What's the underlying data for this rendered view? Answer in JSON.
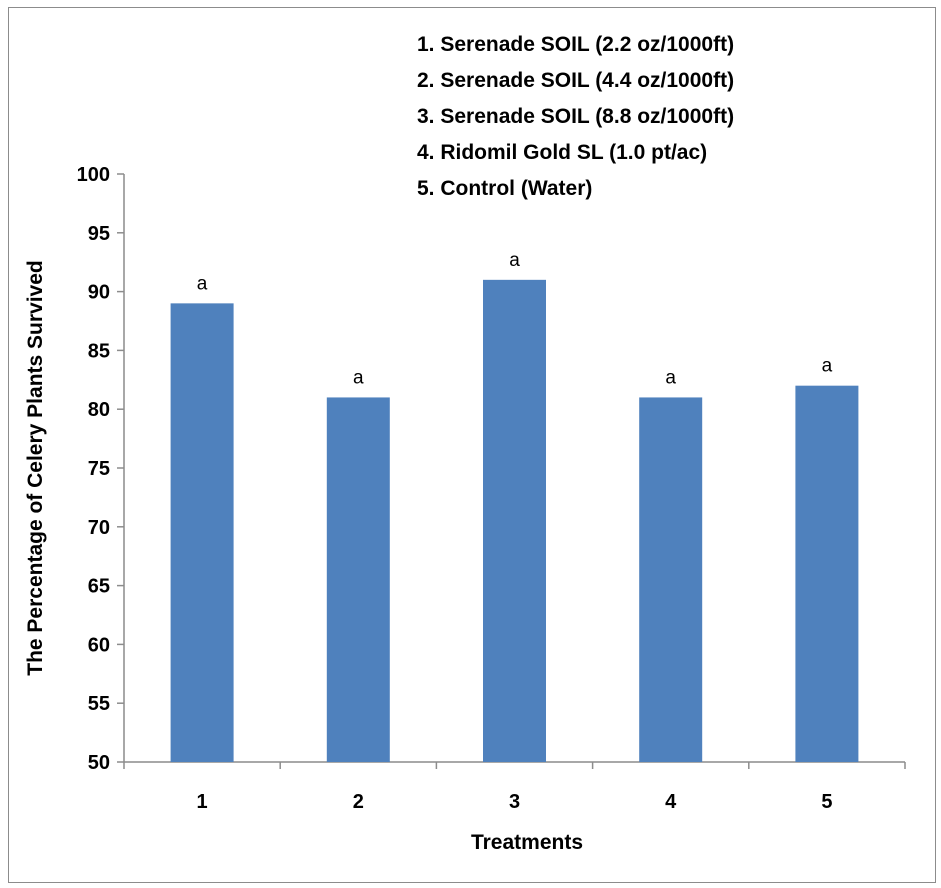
{
  "chart_data": {
    "type": "bar",
    "categories": [
      "1",
      "2",
      "3",
      "4",
      "5"
    ],
    "values": [
      89,
      81,
      91,
      81,
      82
    ],
    "data_labels": [
      "a",
      "a",
      "a",
      "a",
      "a"
    ],
    "xlabel": "Treatments",
    "ylabel": "The  Percentage  of Celery Plants Survived",
    "ylim": [
      50,
      100
    ],
    "yticks": [
      50,
      55,
      60,
      65,
      70,
      75,
      80,
      85,
      90,
      95,
      100
    ],
    "grid": false,
    "bar_color": "#4f81bd",
    "legend_placement": "top-right",
    "legend": [
      "1. Serenade SOIL (2.2 oz/1000ft)",
      "2. Serenade SOIL (4.4 oz/1000ft)",
      "3. Serenade SOIL (8.8 oz/1000ft)",
      "4. Ridomil Gold SL (1.0 pt/ac)",
      "5. Control (Water)"
    ]
  }
}
